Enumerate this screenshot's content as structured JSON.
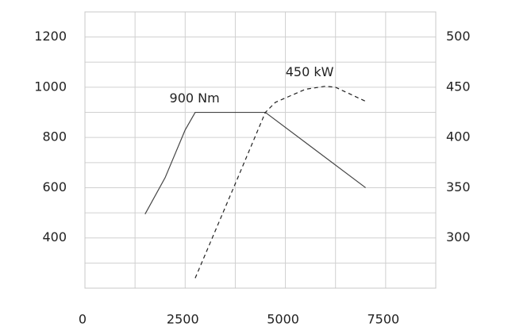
{
  "chart_data": {
    "type": "line",
    "xlim": [
      0,
      8750
    ],
    "xticks": [
      0,
      2500,
      5000,
      7500
    ],
    "x_grid": [
      1250,
      2500,
      3750,
      5000,
      6250,
      7500,
      8750
    ],
    "ylim": [
      200,
      1300
    ],
    "yticks": [
      400,
      600,
      800,
      1000,
      1200
    ],
    "y_grid": [
      300,
      400,
      500,
      600,
      700,
      800,
      900,
      1000,
      1100,
      1200
    ],
    "y2lim": [
      250,
      525
    ],
    "y2ticks": [
      300,
      350,
      400,
      450,
      500
    ],
    "grid": true,
    "series": [
      {
        "name": "900 Nm",
        "color": "#444444",
        "dash": false,
        "x": [
          1500,
          2000,
          2500,
          2750,
          4500,
          5500,
          7000
        ],
        "values": [
          495,
          640,
          830,
          900,
          900,
          780,
          600
        ]
      },
      {
        "name": "450 kW",
        "color": "#222222",
        "dash": true,
        "axis": "y2",
        "x": [
          2750,
          3750,
          4500,
          4750,
          5500,
          6000,
          6250,
          7000
        ],
        "values": [
          260,
          354,
          425,
          435,
          448,
          451,
          450,
          436
        ]
      }
    ]
  }
}
